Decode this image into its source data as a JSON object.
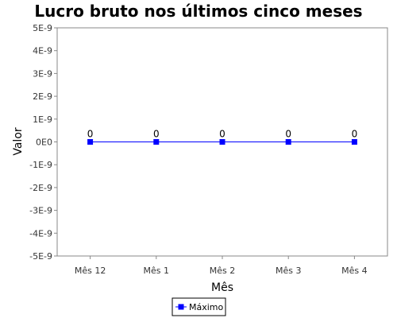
{
  "chart_data": {
    "type": "line",
    "title": "Lucro bruto nos últimos cinco meses",
    "xlabel": "Mês",
    "ylabel": "Valor",
    "categories": [
      "Mês 12",
      "Mês 1",
      "Mês 2",
      "Mês 3",
      "Mês 4"
    ],
    "series": [
      {
        "name": "Máximo",
        "values": [
          0,
          0,
          0,
          0,
          0
        ],
        "data_labels": [
          "0",
          "0",
          "0",
          "0",
          "0"
        ],
        "color": "#0000ff"
      }
    ],
    "ylim": [
      -5e-09,
      5e-09
    ],
    "yticks": [
      5e-09,
      4e-09,
      3e-09,
      2e-09,
      1e-09,
      0,
      -1e-09,
      -2e-09,
      -3e-09,
      -4e-09,
      -5e-09
    ],
    "ytick_labels": [
      "5E-9",
      "4E-9",
      "3E-9",
      "2E-9",
      "1E-9",
      "0E0",
      "-1E-9",
      "-2E-9",
      "-3E-9",
      "-4E-9",
      "-5E-9"
    ],
    "grid": false,
    "legend": "bottom-center",
    "colors": {
      "series": "#0000ff",
      "axis": "#888888",
      "text": "#333333"
    }
  }
}
